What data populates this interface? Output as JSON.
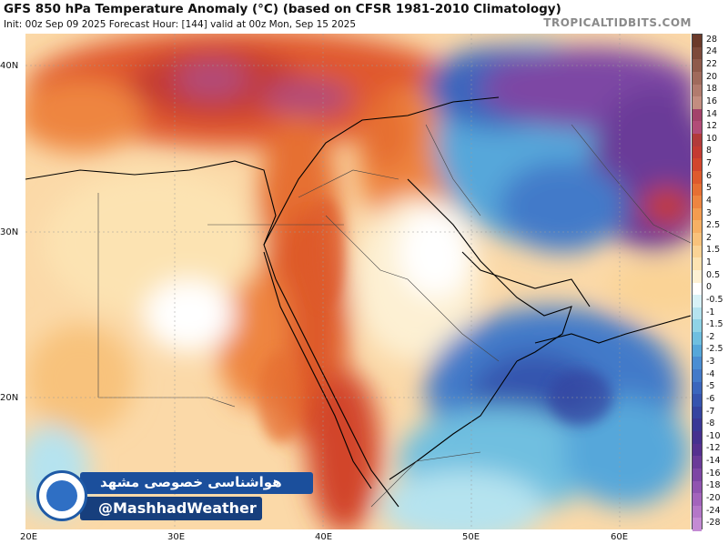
{
  "header": {
    "title": "GFS 850 hPa Temperature Anomaly (°C) (based on CFSR 1981-2010 Climatology)",
    "subtitle": "Init: 00z Sep 09 2025   Forecast Hour: [144]   valid at 00z Mon, Sep 15 2025",
    "brand": "TROPICALTIDBITS.COM"
  },
  "map": {
    "lat_labels": [
      "40N",
      "30N",
      "20N"
    ],
    "lon_labels": [
      "20E",
      "30E",
      "40E",
      "50E",
      "60E"
    ]
  },
  "colorbar": {
    "labels": [
      "28",
      "24",
      "22",
      "20",
      "18",
      "16",
      "14",
      "12",
      "10",
      "8",
      "7",
      "6",
      "5",
      "4",
      "3",
      "2.5",
      "2",
      "1.5",
      "1",
      "0.5",
      "0",
      "-0.5",
      "-1",
      "-1.5",
      "-2",
      "-2.5",
      "-3",
      "-4",
      "-5",
      "-6",
      "-7",
      "-8",
      "-10",
      "-12",
      "-14",
      "-16",
      "-18",
      "-20",
      "-24",
      "-28"
    ],
    "colors": [
      "#6b3a2a",
      "#7d4a3a",
      "#8f5a4b",
      "#a06a5c",
      "#b27b6e",
      "#c38d80",
      "#a3426a",
      "#b24c78",
      "#b23a3a",
      "#c43a32",
      "#d2452c",
      "#de5a2c",
      "#e66f33",
      "#ee8540",
      "#f39c4f",
      "#f6b064",
      "#f8c27b",
      "#fad395",
      "#fce3b2",
      "#fdf0d3",
      "#ffffff",
      "#d8f1f6",
      "#b5e3ef",
      "#8fd3e6",
      "#6fbfe0",
      "#56a7da",
      "#4b8ed3",
      "#437ac9",
      "#3b66bd",
      "#3654ae",
      "#3544a0",
      "#3a3896",
      "#45308f",
      "#55308f",
      "#6a3a98",
      "#7d46a4",
      "#9054b0",
      "#a364bc",
      "#b477c8",
      "#c48bd4"
    ]
  },
  "badge": {
    "title_fa": "هواشناسی خصوصی مشهد",
    "handle": "@MashhadWeather"
  }
}
